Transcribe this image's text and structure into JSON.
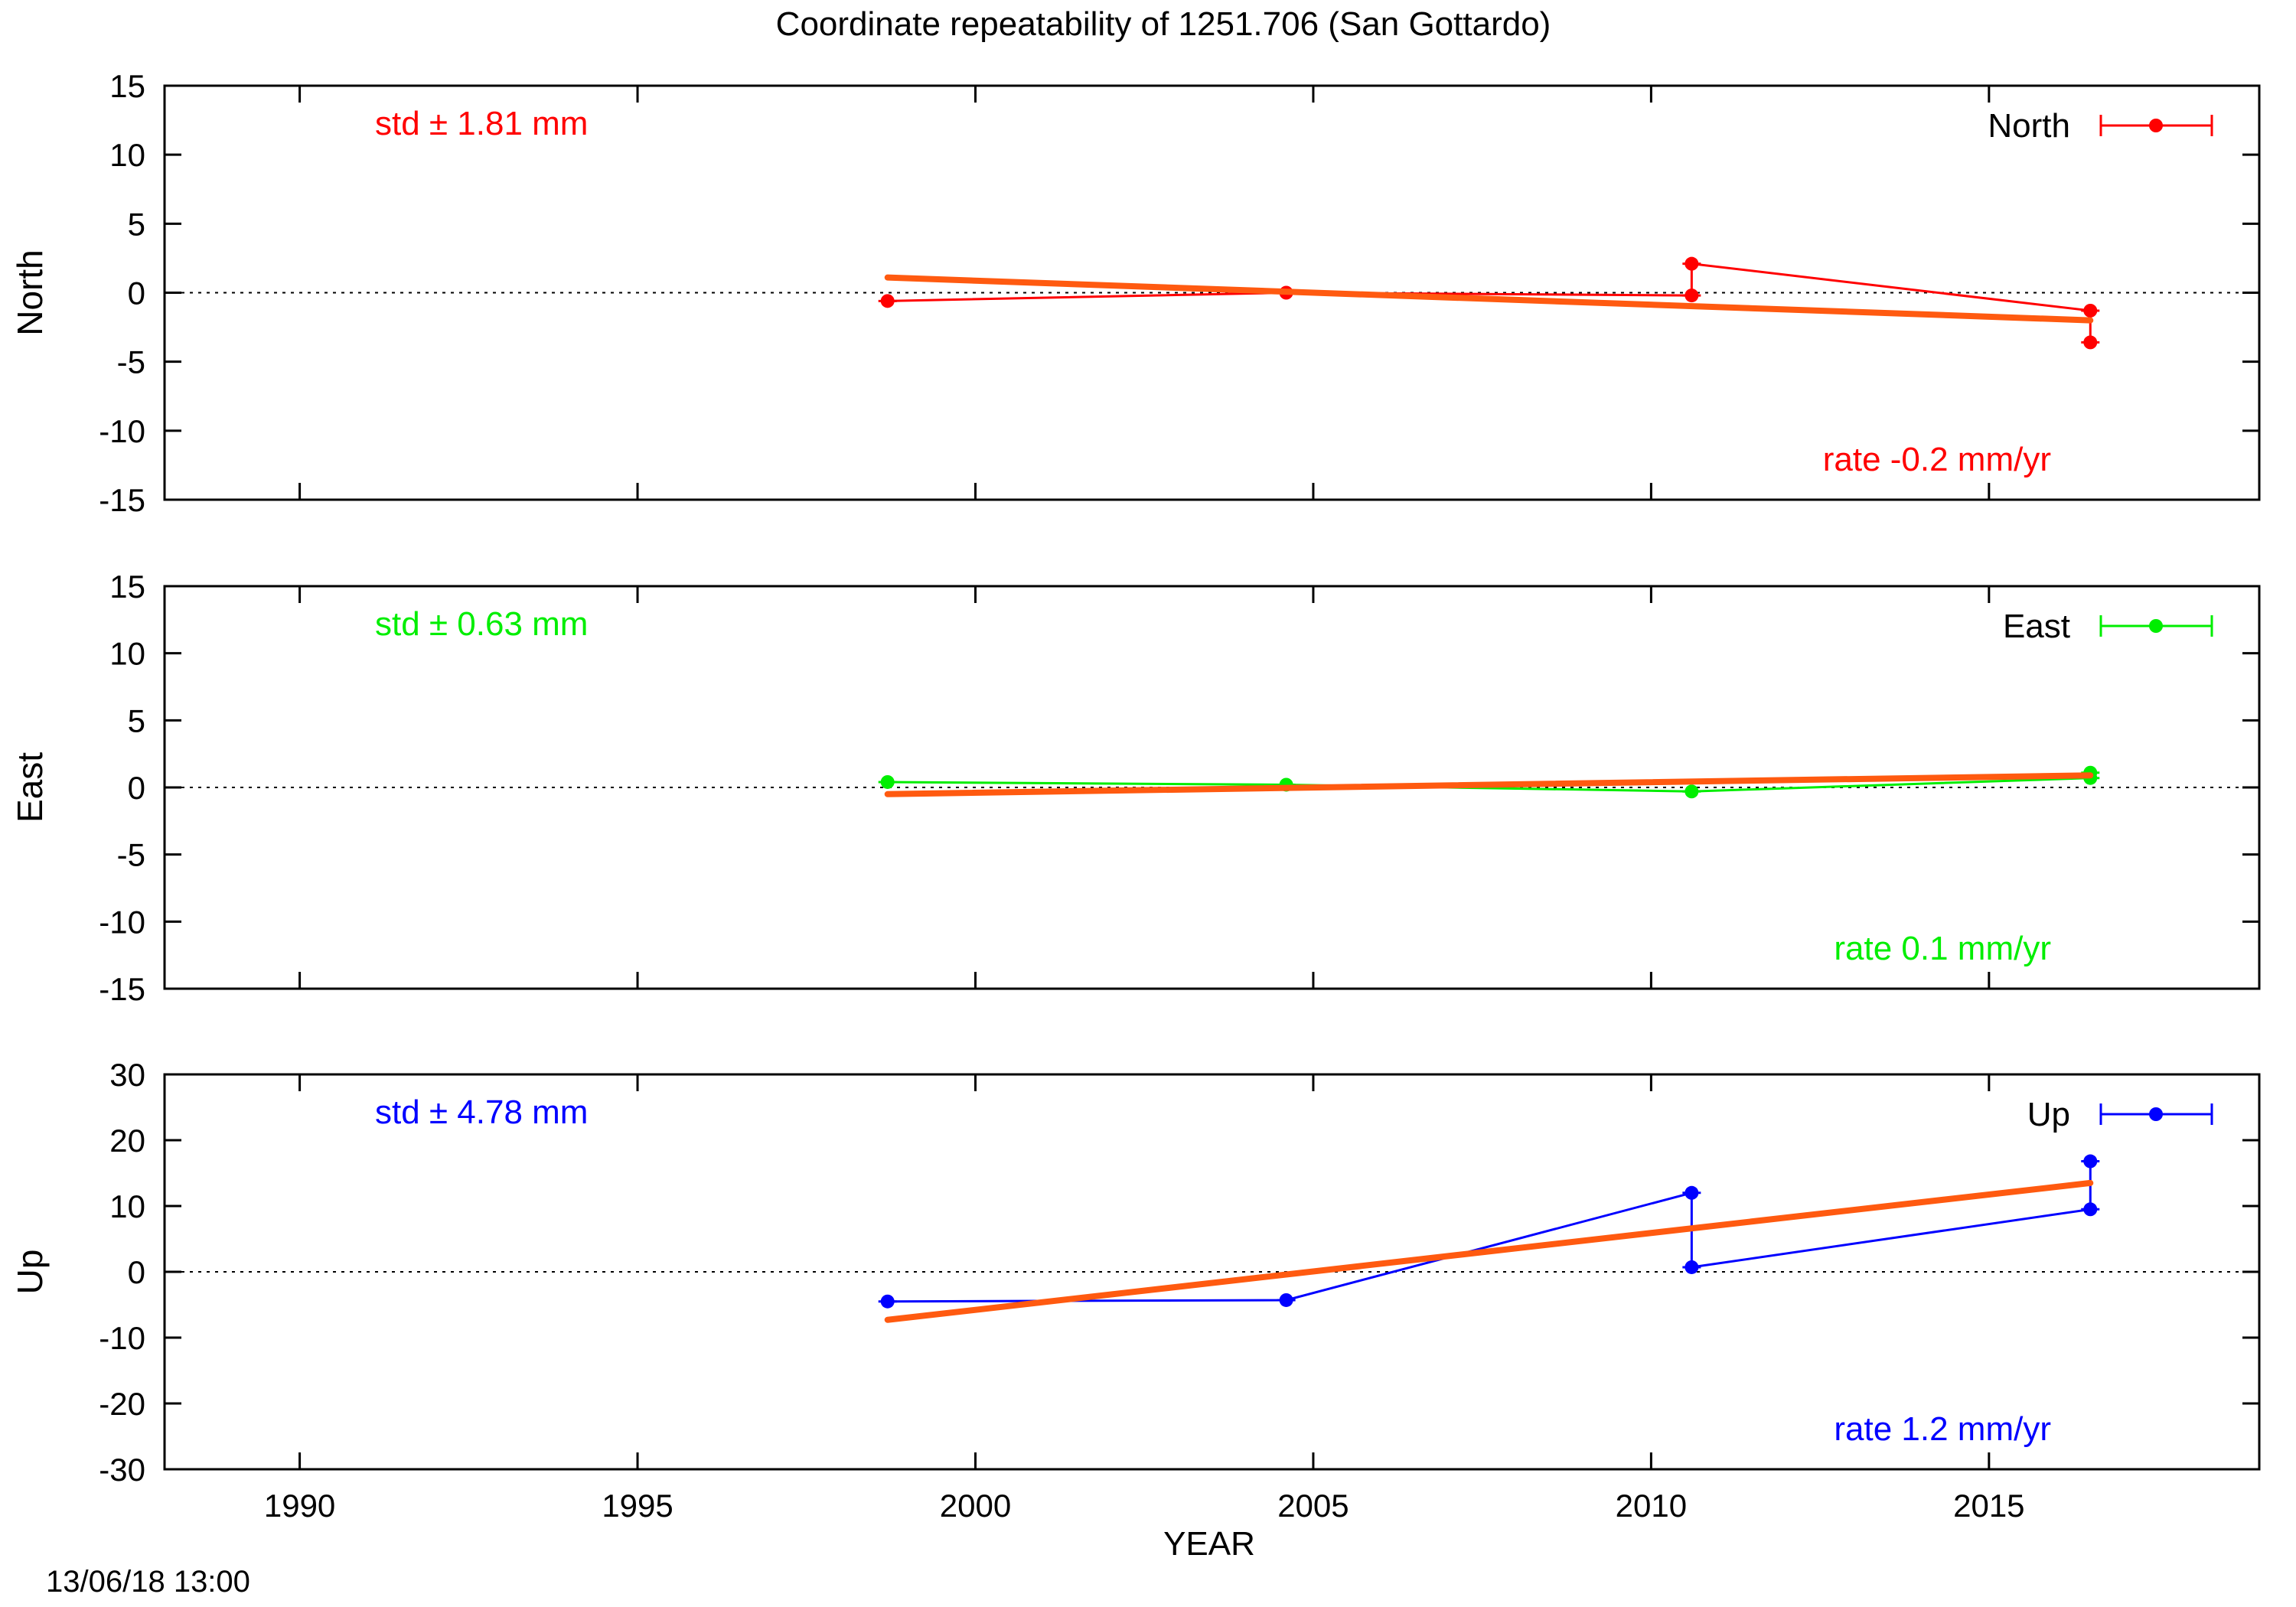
{
  "title": "Coordinate repeatability of 1251.706        (San Gottardo)",
  "xlabel": "YEAR",
  "timestamp": "13/06/18 13:00",
  "colors": {
    "north": "#ff0000",
    "east": "#00ee00",
    "up": "#0000ff",
    "fit": "#ff5a10",
    "axis": "#000000"
  },
  "chart_data": [
    {
      "type": "line",
      "id": "north",
      "ylabel": "North",
      "legend": "North",
      "legend_position": "top-right",
      "std_label": "std ± 1.81 mm",
      "rate_label": "rate -0.2 mm/yr",
      "xlim": [
        1988,
        2019
      ],
      "ylim": [
        -15,
        15
      ],
      "yticks": [
        -15,
        -10,
        -5,
        0,
        5,
        10,
        15
      ],
      "zero_line": true,
      "series": [
        {
          "name": "North",
          "x": [
            1998.7,
            2004.6,
            2010.6,
            2010.6,
            2016.5,
            2016.5
          ],
          "y": [
            -0.6,
            0.0,
            -0.2,
            2.1,
            -1.3,
            -3.6
          ]
        }
      ],
      "fit": {
        "x": [
          1998.7,
          2016.5
        ],
        "y": [
          1.1,
          -2.0
        ]
      }
    },
    {
      "type": "line",
      "id": "east",
      "ylabel": "East",
      "legend": "East",
      "legend_position": "top-right",
      "std_label": "std ± 0.63 mm",
      "rate_label": "rate  0.1 mm/yr",
      "xlim": [
        1988,
        2019
      ],
      "ylim": [
        -15,
        15
      ],
      "yticks": [
        -15,
        -10,
        -5,
        0,
        5,
        10,
        15
      ],
      "zero_line": true,
      "series": [
        {
          "name": "East",
          "x": [
            1998.7,
            2004.6,
            2010.6,
            2016.5,
            2016.5
          ],
          "y": [
            0.4,
            0.2,
            -0.3,
            0.7,
            1.1
          ]
        }
      ],
      "fit": {
        "x": [
          1998.7,
          2016.5
        ],
        "y": [
          -0.5,
          0.9
        ]
      }
    },
    {
      "type": "line",
      "id": "up",
      "ylabel": "Up",
      "legend": "Up",
      "legend_position": "top-right",
      "std_label": "std ± 4.78 mm",
      "rate_label": "rate  1.2 mm/yr",
      "xlim": [
        1988,
        2019
      ],
      "ylim": [
        -30,
        30
      ],
      "yticks": [
        -30,
        -20,
        -10,
        0,
        10,
        20,
        30
      ],
      "zero_line": true,
      "series": [
        {
          "name": "Up",
          "x": [
            1998.7,
            2004.6,
            2010.6,
            2010.6,
            2016.5,
            2016.5
          ],
          "y": [
            -4.5,
            -4.3,
            12.0,
            0.7,
            9.5,
            16.8
          ]
        }
      ],
      "fit": {
        "x": [
          1998.7,
          2016.5
        ],
        "y": [
          -7.3,
          13.5
        ]
      }
    }
  ],
  "xticks": [
    1990,
    1995,
    2000,
    2005,
    2010,
    2015
  ]
}
